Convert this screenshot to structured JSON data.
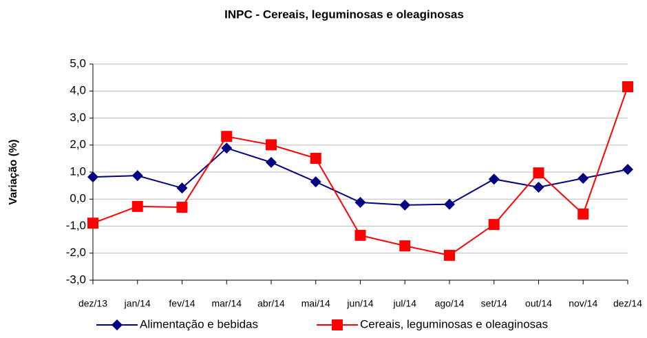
{
  "chart_data": {
    "type": "line",
    "title": "INPC - Cereais, leguminosas e oleaginosas",
    "y_label": "Variação (%)",
    "categories": [
      "dez/13",
      "jan/14",
      "fev/14",
      "mar/14",
      "abr/14",
      "mai/14",
      "jun/14",
      "jul/14",
      "ago/14",
      "set/14",
      "out/14",
      "nov/14",
      "dez/14"
    ],
    "series": [
      {
        "name": "Alimentação e bebidas",
        "color": "#000080",
        "marker": "diamond",
        "values": [
          0.82,
          0.87,
          0.41,
          1.89,
          1.36,
          0.64,
          -0.12,
          -0.22,
          -0.19,
          0.74,
          0.44,
          0.77,
          1.1
        ]
      },
      {
        "name": "Cereais, leguminosas e oleaginosas",
        "color": "#ff0000",
        "marker": "square",
        "values": [
          -0.89,
          -0.27,
          -0.3,
          2.32,
          2.01,
          1.51,
          -1.34,
          -1.73,
          -2.08,
          -0.94,
          0.97,
          -0.55,
          4.16
        ]
      }
    ],
    "ylim": [
      -3,
      5
    ],
    "yticks": [
      {
        "value": -3,
        "label": "-3,0"
      },
      {
        "value": -2,
        "label": "-2,0"
      },
      {
        "value": -1,
        "label": "-1,0"
      },
      {
        "value": 0,
        "label": "0,0"
      },
      {
        "value": 1,
        "label": "1,0"
      },
      {
        "value": 2,
        "label": "2,0"
      },
      {
        "value": 3,
        "label": "3,0"
      },
      {
        "value": 4,
        "label": "4,0"
      },
      {
        "value": 5,
        "label": "5,0"
      }
    ],
    "grid": true,
    "legend": "bottom"
  }
}
